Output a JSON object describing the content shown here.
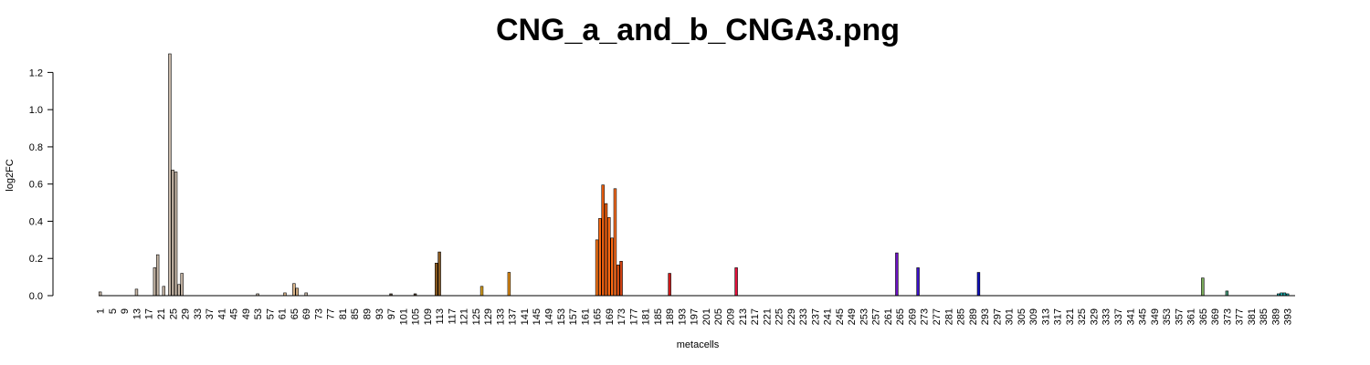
{
  "chart_data": {
    "type": "bar",
    "title": "CNG_a_and_b_CNGA3.png",
    "xlabel": "metacells",
    "ylabel": "log2FC",
    "ylim": [
      0,
      1.3
    ],
    "y_ticks": [
      0.0,
      0.2,
      0.4,
      0.6,
      0.8,
      1.0,
      1.2
    ],
    "y_tick_labels": [
      "0.0",
      "0.2",
      "0.4",
      "0.6",
      "0.8",
      "1.0",
      "1.2"
    ],
    "x_range": [
      1,
      395
    ],
    "x_ticks": [
      1,
      5,
      9,
      13,
      17,
      21,
      25,
      29,
      33,
      37,
      41,
      45,
      49,
      53,
      57,
      61,
      65,
      69,
      73,
      77,
      81,
      85,
      89,
      93,
      97,
      101,
      105,
      109,
      113,
      117,
      121,
      125,
      129,
      133,
      137,
      141,
      145,
      149,
      153,
      157,
      161,
      165,
      169,
      173,
      177,
      181,
      185,
      189,
      193,
      197,
      201,
      205,
      209,
      213,
      217,
      221,
      225,
      229,
      233,
      237,
      241,
      245,
      249,
      253,
      257,
      261,
      265,
      269,
      273,
      277,
      281,
      285,
      289,
      293,
      297,
      301,
      305,
      309,
      313,
      317,
      321,
      325,
      329,
      333,
      337,
      341,
      345,
      349,
      353,
      357,
      361,
      365,
      369,
      373,
      377,
      381,
      385,
      389,
      393
    ],
    "grid": false,
    "legend": "none",
    "bars": [
      {
        "x": 1,
        "value": 0.02,
        "color": "#c8b8a8"
      },
      {
        "x": 13,
        "value": 0.035,
        "color": "#c8b8a8"
      },
      {
        "x": 19,
        "value": 0.15,
        "color": "#c8b8a8"
      },
      {
        "x": 20,
        "value": 0.22,
        "color": "#c8b8a8"
      },
      {
        "x": 22,
        "value": 0.05,
        "color": "#c8b8a8"
      },
      {
        "x": 24,
        "value": 1.3,
        "color": "#c8b8a8"
      },
      {
        "x": 25,
        "value": 0.675,
        "color": "#c8b8a8"
      },
      {
        "x": 26,
        "value": 0.665,
        "color": "#c8b8a8"
      },
      {
        "x": 27,
        "value": 0.06,
        "color": "#c8b8a8"
      },
      {
        "x": 28,
        "value": 0.12,
        "color": "#c8b8a8"
      },
      {
        "x": 53,
        "value": 0.01,
        "color": "#c8b8a8"
      },
      {
        "x": 62,
        "value": 0.015,
        "color": "#d9b48a"
      },
      {
        "x": 65,
        "value": 0.065,
        "color": "#d9b48a"
      },
      {
        "x": 66,
        "value": 0.04,
        "color": "#d9b48a"
      },
      {
        "x": 69,
        "value": 0.015,
        "color": "#c8b8a8"
      },
      {
        "x": 97,
        "value": 0.01,
        "color": "#5a4a3a"
      },
      {
        "x": 105,
        "value": 0.01,
        "color": "#5a4a3a"
      },
      {
        "x": 112,
        "value": 0.175,
        "color": "#8a5a20"
      },
      {
        "x": 113,
        "value": 0.235,
        "color": "#8a5a20"
      },
      {
        "x": 127,
        "value": 0.05,
        "color": "#d9a020"
      },
      {
        "x": 136,
        "value": 0.125,
        "color": "#e6901a"
      },
      {
        "x": 165,
        "value": 0.3,
        "color": "#ff7a1a"
      },
      {
        "x": 166,
        "value": 0.415,
        "color": "#ff6a10"
      },
      {
        "x": 167,
        "value": 0.595,
        "color": "#f06010"
      },
      {
        "x": 168,
        "value": 0.495,
        "color": "#f06010"
      },
      {
        "x": 169,
        "value": 0.42,
        "color": "#ff6a10"
      },
      {
        "x": 170,
        "value": 0.31,
        "color": "#ff6a10"
      },
      {
        "x": 171,
        "value": 0.575,
        "color": "#ff7020"
      },
      {
        "x": 172,
        "value": 0.165,
        "color": "#e05010"
      },
      {
        "x": 173,
        "value": 0.185,
        "color": "#d04010"
      },
      {
        "x": 189,
        "value": 0.12,
        "color": "#d01818"
      },
      {
        "x": 211,
        "value": 0.15,
        "color": "#e0103a"
      },
      {
        "x": 264,
        "value": 0.23,
        "color": "#6a10c0"
      },
      {
        "x": 271,
        "value": 0.15,
        "color": "#3a10c8"
      },
      {
        "x": 291,
        "value": 0.125,
        "color": "#1010c0"
      },
      {
        "x": 365,
        "value": 0.095,
        "color": "#7aaa5a"
      },
      {
        "x": 373,
        "value": 0.025,
        "color": "#4a9a7a"
      },
      {
        "x": 390,
        "value": 0.01,
        "color": "#20b0b0"
      },
      {
        "x": 391,
        "value": 0.015,
        "color": "#20b0b0"
      },
      {
        "x": 392,
        "value": 0.015,
        "color": "#20b0b0"
      },
      {
        "x": 393,
        "value": 0.01,
        "color": "#20b0b0"
      }
    ]
  }
}
